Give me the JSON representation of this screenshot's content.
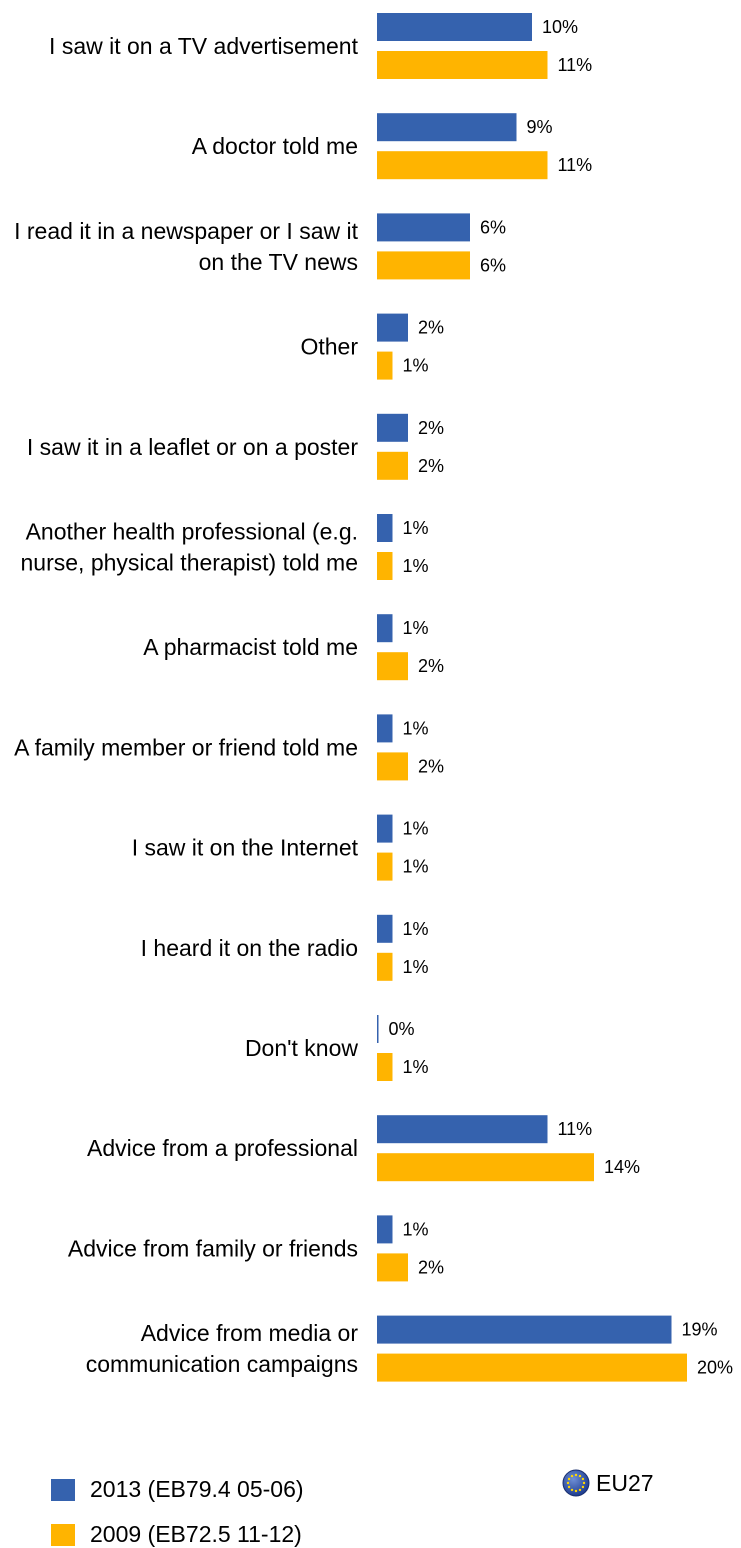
{
  "chart_data": {
    "type": "bar",
    "orientation": "horizontal",
    "categories": [
      [
        "I saw it on a TV advertisement"
      ],
      [
        "A doctor told me"
      ],
      [
        "I read it in a newspaper or I saw it",
        "on the TV news"
      ],
      [
        "Other"
      ],
      [
        "I saw it in a leaflet or on a poster"
      ],
      [
        "Another health professional (e.g.",
        "nurse, physical therapist) told me"
      ],
      [
        "A pharmacist told me"
      ],
      [
        "A family member or friend told me"
      ],
      [
        "I saw it on the Internet"
      ],
      [
        "I heard it on the radio"
      ],
      [
        "Don't know"
      ],
      [
        "Advice from a professional"
      ],
      [
        "Advice from family or friends"
      ],
      [
        "Advice from media or",
        "communication campaigns"
      ]
    ],
    "series": [
      {
        "name": "2013 (EB79.4 05-06)",
        "color": "#3562ae",
        "values": [
          10,
          9,
          6,
          2,
          2,
          1,
          1,
          1,
          1,
          1,
          0,
          11,
          1,
          19
        ],
        "value_labels": [
          "10%",
          "9%",
          "6%",
          "2%",
          "2%",
          "1%",
          "1%",
          "1%",
          "1%",
          "1%",
          "0%",
          "11%",
          "1%",
          "19%"
        ]
      },
      {
        "name": "2009 (EB72.5 11-12)",
        "color": "#ffb400",
        "values": [
          11,
          11,
          6,
          1,
          2,
          1,
          2,
          2,
          1,
          1,
          1,
          14,
          2,
          20
        ],
        "value_labels": [
          "11%",
          "11%",
          "6%",
          "1%",
          "2%",
          "1%",
          "2%",
          "2%",
          "1%",
          "1%",
          "1%",
          "14%",
          "2%",
          "20%"
        ]
      }
    ],
    "legend": {
      "placement": "bottom",
      "region_label": "EU27"
    }
  }
}
